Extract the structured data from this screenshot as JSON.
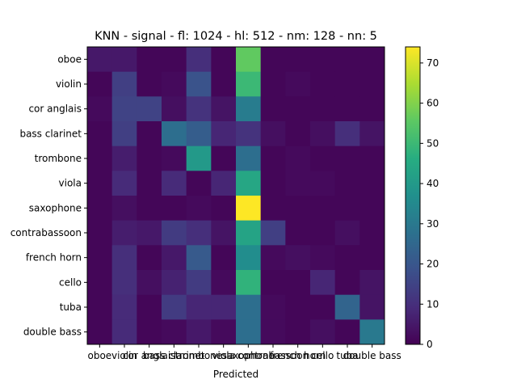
{
  "chart_data": {
    "type": "heatmap",
    "title": "KNN - signal - fl: 1024 - hl: 512 - nm: 128 - nn: 5",
    "xlabel": "Predicted",
    "ylabel": "",
    "labels": [
      "oboe",
      "violin",
      "cor anglais",
      "bass clarinet",
      "trombone",
      "viola",
      "saxophone",
      "contrabassoon",
      "french horn",
      "cello",
      "tuba",
      "double bass"
    ],
    "matrix": [
      [
        5,
        5,
        1,
        1,
        10,
        1,
        56,
        1,
        1,
        1,
        1,
        1
      ],
      [
        1,
        14,
        1,
        2,
        19,
        1,
        50,
        1,
        2,
        1,
        1,
        1
      ],
      [
        2,
        15,
        15,
        3,
        11,
        4,
        31,
        1,
        1,
        1,
        1,
        1
      ],
      [
        1,
        14,
        1,
        27,
        22,
        8,
        11,
        3,
        1,
        3,
        10,
        4
      ],
      [
        1,
        6,
        1,
        2,
        40,
        1,
        27,
        1,
        2,
        1,
        1,
        1
      ],
      [
        1,
        9,
        1,
        9,
        1,
        8,
        44,
        1,
        2,
        2,
        1,
        1
      ],
      [
        1,
        3,
        1,
        1,
        2,
        1,
        74,
        1,
        1,
        1,
        1,
        1
      ],
      [
        1,
        6,
        5,
        13,
        10,
        4,
        43,
        14,
        1,
        1,
        3,
        1
      ],
      [
        1,
        10,
        1,
        5,
        21,
        1,
        36,
        2,
        3,
        2,
        1,
        1
      ],
      [
        1,
        10,
        3,
        7,
        13,
        2,
        48,
        1,
        1,
        8,
        1,
        4
      ],
      [
        1,
        9,
        1,
        13,
        8,
        8,
        27,
        2,
        1,
        1,
        24,
        4
      ],
      [
        1,
        9,
        1,
        2,
        5,
        2,
        27,
        2,
        1,
        3,
        1,
        30
      ]
    ],
    "vmin": 0,
    "vmax": 74,
    "colorbar_ticks": [
      0,
      10,
      20,
      30,
      40,
      50,
      60,
      70
    ],
    "colormap": "viridis",
    "grid": false,
    "legend": "colorbar-right"
  }
}
